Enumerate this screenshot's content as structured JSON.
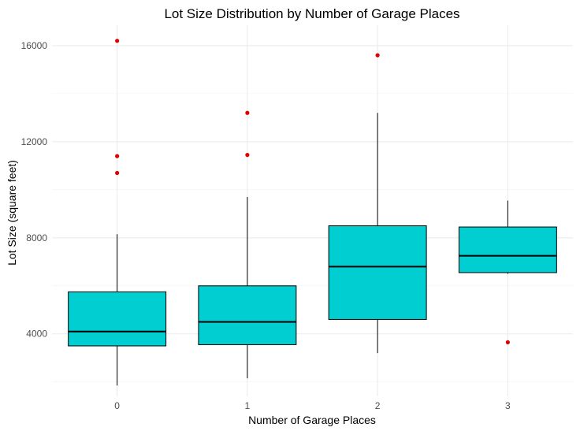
{
  "chart_data": {
    "type": "boxplot",
    "title": "Lot Size Distribution by Number of Garage Places",
    "xlabel": "Number of Garage Places",
    "ylabel": "Lot Size (square feet)",
    "categories": [
      "0",
      "1",
      "2",
      "3"
    ],
    "yticks": [
      4000,
      8000,
      12000,
      16000
    ],
    "ylim": [
      1400,
      16850
    ],
    "grid": true,
    "fill_color": "#00CED1",
    "outlier_color": "#E00000",
    "boxes": [
      {
        "category": "0",
        "whisker_low": 1850,
        "q1": 3500,
        "median": 4100,
        "q3": 5750,
        "whisker_high": 8150,
        "outliers": [
          10700,
          11400,
          16200
        ]
      },
      {
        "category": "1",
        "whisker_low": 2150,
        "q1": 3550,
        "median": 4500,
        "q3": 6000,
        "whisker_high": 9700,
        "outliers": [
          11450,
          13200
        ]
      },
      {
        "category": "2",
        "whisker_low": 3200,
        "q1": 4600,
        "median": 6800,
        "q3": 8500,
        "whisker_high": 13200,
        "outliers": [
          15600
        ]
      },
      {
        "category": "3",
        "whisker_low": 6500,
        "q1": 6550,
        "median": 7250,
        "q3": 8450,
        "whisker_high": 9550,
        "outliers": [
          3650
        ]
      }
    ]
  }
}
